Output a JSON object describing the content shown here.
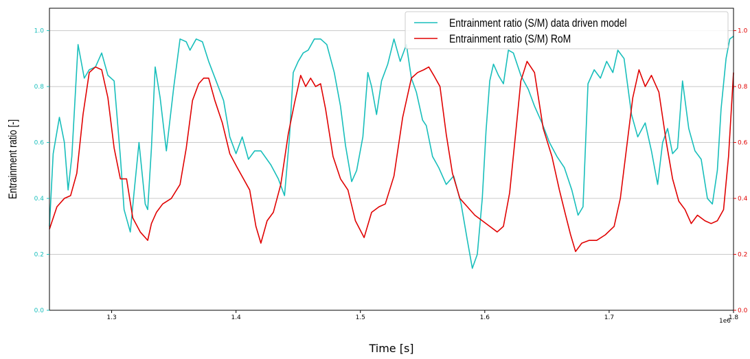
{
  "chart_data": {
    "type": "line",
    "xlabel": "Time [s]",
    "x_offset_label": "1e6",
    "ylabel_left": "Entrainment ratio [-]",
    "xlim": [
      1.25,
      1.8
    ],
    "ylim_left": [
      0.0,
      1.08
    ],
    "ylim_right": [
      0.0,
      1.08
    ],
    "x_ticks": [
      1.3,
      1.4,
      1.5,
      1.6,
      1.7,
      1.8
    ],
    "x_tick_labels": [
      "1.3",
      "1.4",
      "1.5",
      "1.6",
      "1.7",
      "1.8"
    ],
    "y_ticks": [
      0.0,
      0.2,
      0.4,
      0.6,
      0.8,
      1.0
    ],
    "y_tick_labels_left": [
      "0.0",
      "0.2",
      "0.4",
      "0.6",
      "0.8",
      "1.0"
    ],
    "y_tick_labels_right": [
      "0.0",
      "0.2",
      "0.4",
      "0.6",
      "0.8",
      "1.0"
    ],
    "grid": "horizontal",
    "legend_position": "top-right",
    "colors": {
      "data_driven": "#17bebb",
      "rom": "#e00000",
      "left_axis": "#17bebb",
      "right_axis": "#e00000"
    },
    "series": [
      {
        "name": "Entrainment ratio (S/M) data driven model",
        "color": "#17bebb",
        "x": [
          1.25,
          1.253,
          1.258,
          1.262,
          1.265,
          1.268,
          1.273,
          1.278,
          1.282,
          1.287,
          1.292,
          1.297,
          1.302,
          1.307,
          1.31,
          1.315,
          1.318,
          1.322,
          1.327,
          1.329,
          1.332,
          1.335,
          1.339,
          1.344,
          1.35,
          1.355,
          1.36,
          1.363,
          1.368,
          1.373,
          1.378,
          1.384,
          1.39,
          1.395,
          1.4,
          1.405,
          1.41,
          1.415,
          1.42,
          1.428,
          1.434,
          1.439,
          1.443,
          1.446,
          1.45,
          1.454,
          1.458,
          1.463,
          1.468,
          1.473,
          1.479,
          1.484,
          1.488,
          1.493,
          1.497,
          1.502,
          1.506,
          1.509,
          1.513,
          1.517,
          1.522,
          1.527,
          1.532,
          1.537,
          1.541,
          1.545,
          1.55,
          1.553,
          1.558,
          1.563,
          1.569,
          1.575,
          1.581,
          1.586,
          1.59,
          1.594,
          1.598,
          1.601,
          1.604,
          1.607,
          1.611,
          1.615,
          1.619,
          1.623,
          1.629,
          1.635,
          1.64,
          1.646,
          1.652,
          1.658,
          1.664,
          1.67,
          1.675,
          1.679,
          1.683,
          1.688,
          1.693,
          1.698,
          1.703,
          1.707,
          1.712,
          1.718,
          1.723,
          1.729,
          1.734,
          1.739,
          1.743,
          1.747,
          1.751,
          1.755,
          1.759,
          1.764,
          1.769,
          1.774,
          1.779,
          1.783,
          1.787,
          1.79,
          1.794,
          1.797,
          1.8
        ],
        "values": [
          0.3,
          0.56,
          0.69,
          0.6,
          0.43,
          0.55,
          0.95,
          0.83,
          0.86,
          0.87,
          0.92,
          0.84,
          0.82,
          0.55,
          0.36,
          0.28,
          0.42,
          0.6,
          0.38,
          0.36,
          0.58,
          0.87,
          0.76,
          0.57,
          0.8,
          0.97,
          0.96,
          0.93,
          0.97,
          0.96,
          0.89,
          0.82,
          0.75,
          0.62,
          0.56,
          0.62,
          0.54,
          0.57,
          0.57,
          0.52,
          0.47,
          0.41,
          0.62,
          0.85,
          0.89,
          0.92,
          0.93,
          0.97,
          0.97,
          0.95,
          0.85,
          0.73,
          0.59,
          0.46,
          0.5,
          0.62,
          0.85,
          0.8,
          0.7,
          0.82,
          0.88,
          0.97,
          0.89,
          0.95,
          0.83,
          0.78,
          0.68,
          0.66,
          0.55,
          0.51,
          0.45,
          0.48,
          0.38,
          0.25,
          0.15,
          0.2,
          0.4,
          0.64,
          0.82,
          0.88,
          0.84,
          0.81,
          0.93,
          0.92,
          0.84,
          0.79,
          0.73,
          0.67,
          0.6,
          0.55,
          0.51,
          0.43,
          0.34,
          0.37,
          0.81,
          0.86,
          0.83,
          0.89,
          0.85,
          0.93,
          0.9,
          0.7,
          0.62,
          0.67,
          0.57,
          0.45,
          0.6,
          0.65,
          0.56,
          0.58,
          0.82,
          0.65,
          0.57,
          0.54,
          0.4,
          0.38,
          0.5,
          0.72,
          0.9,
          0.97,
          0.98
        ]
      },
      {
        "name": "Entrainment ratio (S/M) RoM",
        "color": "#e00000",
        "x": [
          1.25,
          1.256,
          1.262,
          1.267,
          1.272,
          1.277,
          1.282,
          1.287,
          1.292,
          1.297,
          1.302,
          1.307,
          1.312,
          1.317,
          1.323,
          1.329,
          1.332,
          1.336,
          1.341,
          1.348,
          1.355,
          1.36,
          1.365,
          1.37,
          1.374,
          1.378,
          1.383,
          1.389,
          1.395,
          1.401,
          1.406,
          1.411,
          1.416,
          1.42,
          1.425,
          1.43,
          1.436,
          1.442,
          1.447,
          1.452,
          1.456,
          1.46,
          1.464,
          1.468,
          1.472,
          1.478,
          1.484,
          1.49,
          1.496,
          1.503,
          1.509,
          1.515,
          1.52,
          1.527,
          1.534,
          1.541,
          1.546,
          1.551,
          1.555,
          1.559,
          1.564,
          1.569,
          1.574,
          1.58,
          1.586,
          1.592,
          1.598,
          1.604,
          1.61,
          1.615,
          1.62,
          1.625,
          1.629,
          1.634,
          1.64,
          1.647,
          1.654,
          1.66,
          1.665,
          1.669,
          1.673,
          1.678,
          1.684,
          1.69,
          1.697,
          1.704,
          1.709,
          1.714,
          1.719,
          1.724,
          1.729,
          1.734,
          1.74,
          1.746,
          1.751,
          1.756,
          1.761,
          1.766,
          1.771,
          1.777,
          1.782,
          1.787,
          1.792,
          1.796,
          1.8
        ],
        "values": [
          0.29,
          0.37,
          0.4,
          0.41,
          0.49,
          0.7,
          0.85,
          0.87,
          0.86,
          0.76,
          0.58,
          0.47,
          0.47,
          0.33,
          0.28,
          0.25,
          0.31,
          0.35,
          0.38,
          0.4,
          0.45,
          0.58,
          0.75,
          0.81,
          0.83,
          0.83,
          0.75,
          0.67,
          0.56,
          0.51,
          0.47,
          0.43,
          0.3,
          0.24,
          0.32,
          0.35,
          0.45,
          0.63,
          0.74,
          0.84,
          0.8,
          0.83,
          0.8,
          0.81,
          0.72,
          0.55,
          0.47,
          0.43,
          0.32,
          0.26,
          0.35,
          0.37,
          0.38,
          0.48,
          0.69,
          0.83,
          0.85,
          0.86,
          0.87,
          0.84,
          0.8,
          0.63,
          0.49,
          0.4,
          0.37,
          0.34,
          0.32,
          0.3,
          0.28,
          0.3,
          0.42,
          0.64,
          0.82,
          0.89,
          0.85,
          0.65,
          0.55,
          0.43,
          0.34,
          0.27,
          0.21,
          0.24,
          0.25,
          0.25,
          0.27,
          0.3,
          0.4,
          0.58,
          0.76,
          0.86,
          0.8,
          0.84,
          0.78,
          0.6,
          0.47,
          0.39,
          0.36,
          0.31,
          0.34,
          0.32,
          0.31,
          0.32,
          0.36,
          0.55,
          0.85
        ]
      }
    ]
  }
}
